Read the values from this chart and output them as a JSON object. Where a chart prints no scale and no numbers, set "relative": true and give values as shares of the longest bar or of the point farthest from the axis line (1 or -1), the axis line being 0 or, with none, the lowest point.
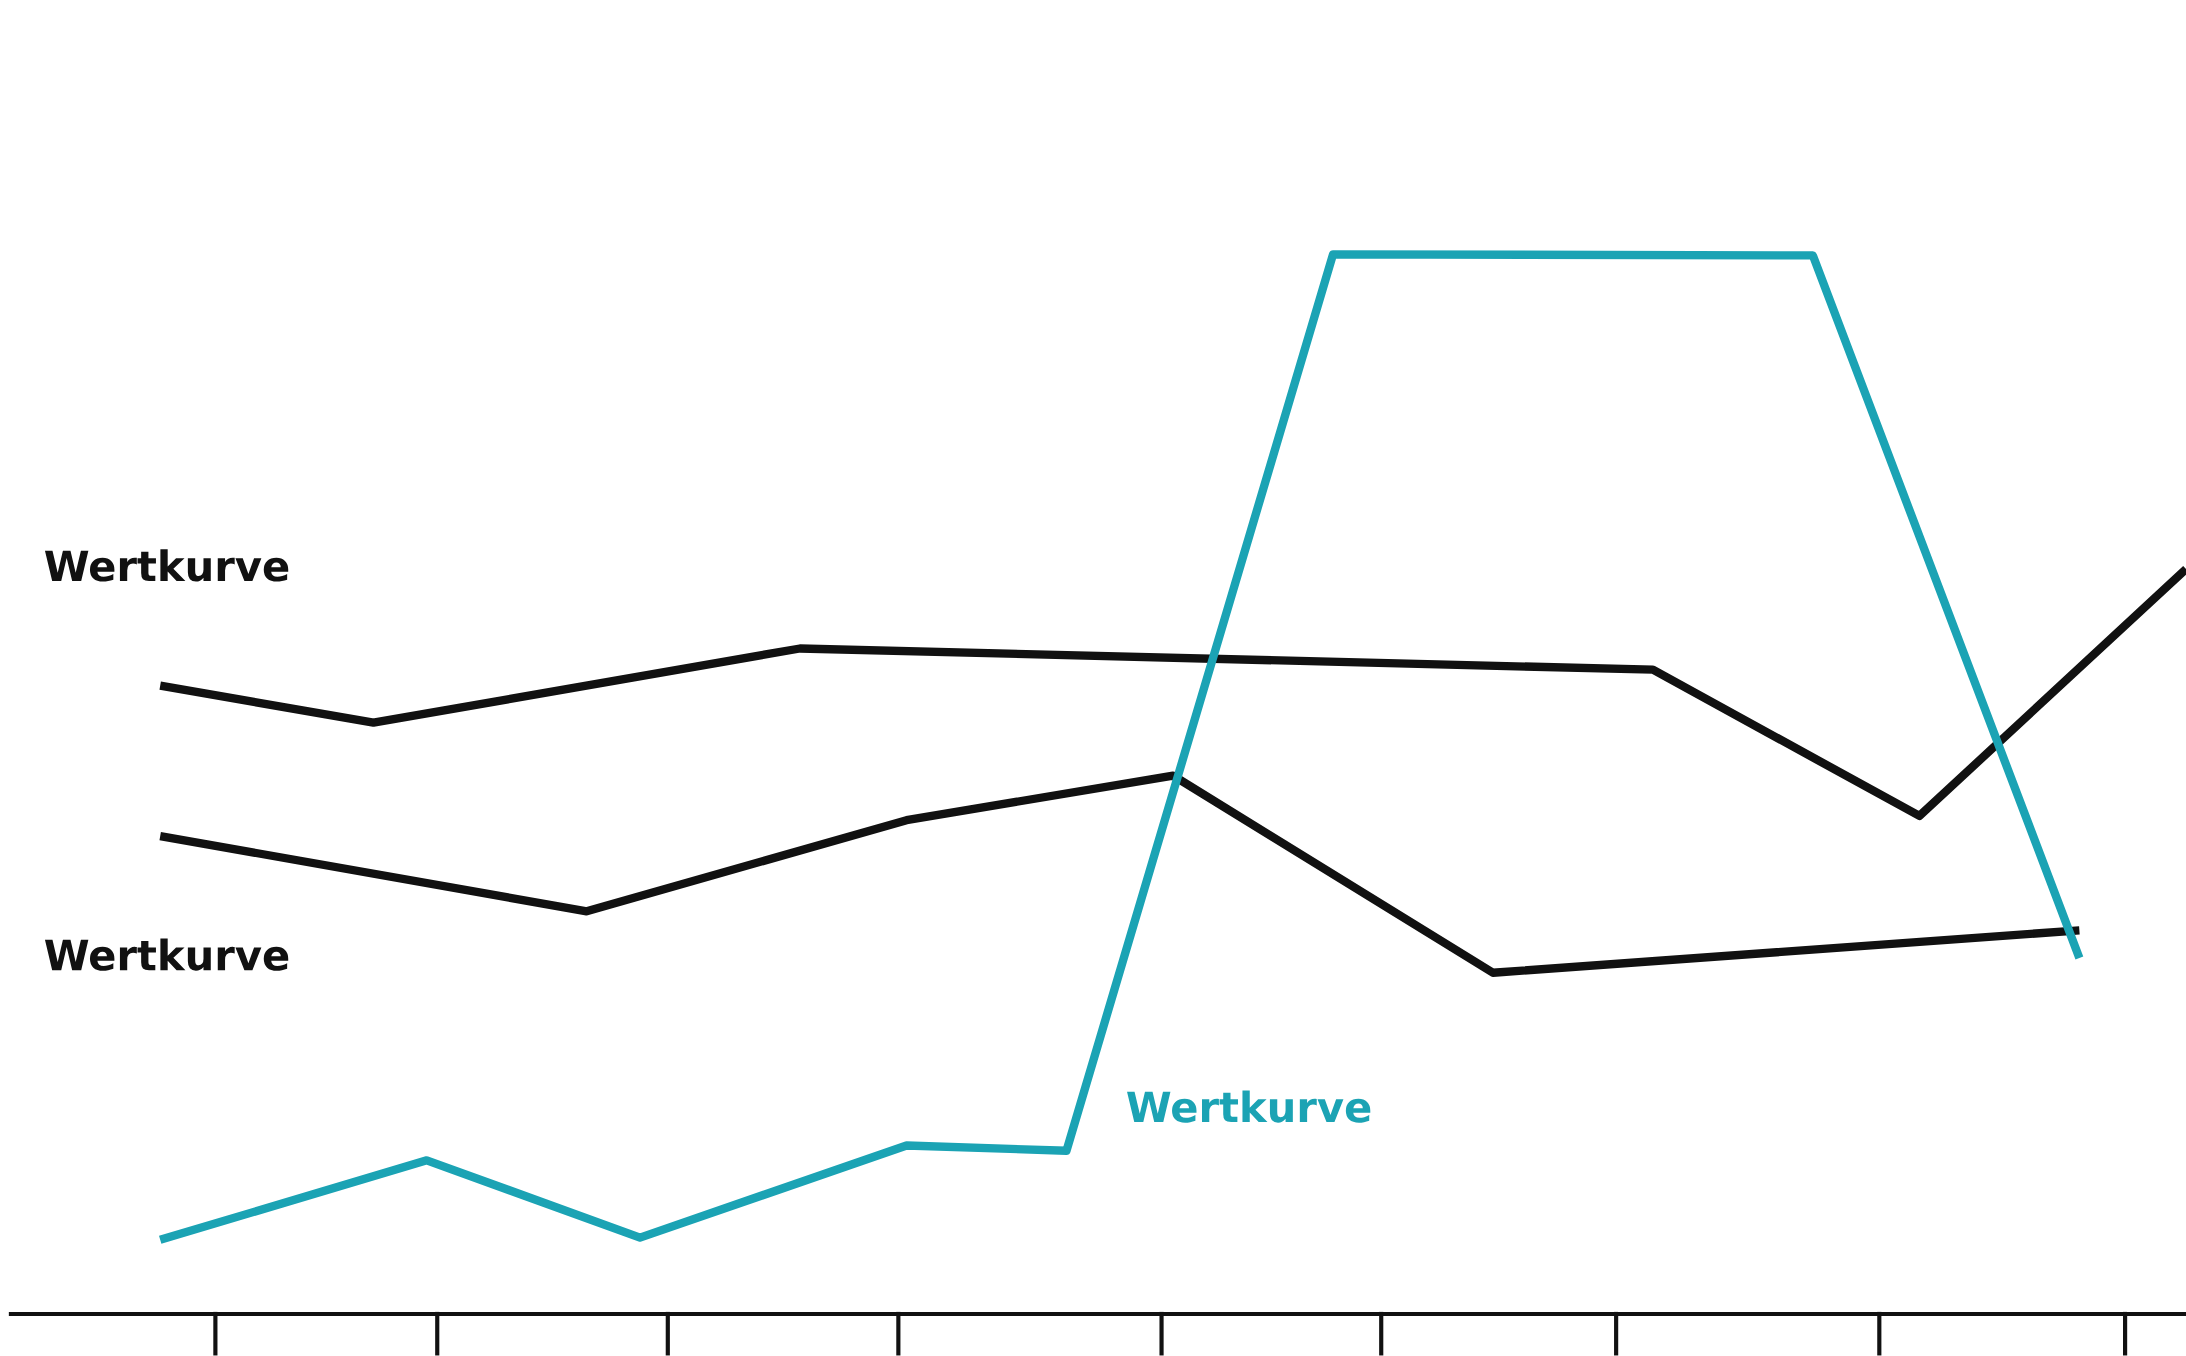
{
  "chart_data": {
    "type": "line",
    "relative": true,
    "categories": [
      null,
      null,
      null,
      null,
      null,
      null,
      null,
      null,
      null,
      null,
      null,
      null,
      null,
      null,
      null,
      null,
      null,
      null,
      null,
      null,
      null,
      null,
      null,
      null,
      null,
      null,
      null,
      null,
      null,
      null,
      null,
      null,
      null,
      null,
      null,
      null,
      null,
      null,
      null,
      null,
      null
    ],
    "grid": false,
    "legend": false,
    "marker": "none",
    "line_style": "solid",
    "series": [
      {
        "name": "Wertkurve",
        "color": "#111111",
        "values": [
          null,
          null,
          0.593,
          null,
          null,
          null,
          0.558,
          null,
          null,
          null,
          null,
          null,
          null,
          null,
          0.628,
          null,
          null,
          null,
          null,
          null,
          null,
          null,
          null,
          null,
          null,
          null,
          null,
          null,
          null,
          null,
          0.608,
          null,
          null,
          null,
          null,
          0.47,
          null,
          null,
          null,
          null,
          0.703
        ]
      },
      {
        "name": "Wertkurve",
        "color": "#111111",
        "values": [
          null,
          null,
          0.451,
          null,
          null,
          null,
          null,
          null,
          null,
          null,
          0.38,
          null,
          null,
          null,
          null,
          null,
          0.466,
          null,
          null,
          null,
          null,
          0.508,
          null,
          null,
          null,
          null,
          null,
          0.322,
          null,
          null,
          null,
          null,
          null,
          null,
          null,
          null,
          null,
          null,
          0.362,
          null,
          null
        ]
      },
      {
        "name": "Wertkurve",
        "color": "#1ba3b4",
        "values": [
          null,
          null,
          0.07,
          null,
          null,
          null,
          null,
          0.145,
          null,
          null,
          null,
          0.072,
          null,
          null,
          null,
          null,
          0.159,
          null,
          null,
          0.154,
          null,
          null,
          null,
          null,
          1,
          null,
          null,
          null,
          null,
          null,
          null,
          null,
          null,
          0.999,
          null,
          null,
          null,
          null,
          0.336,
          null,
          null
        ]
      }
    ]
  }
}
